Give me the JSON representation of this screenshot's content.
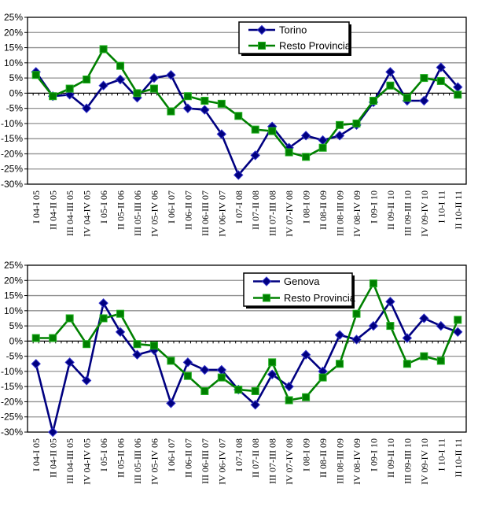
{
  "page": {
    "background": "#ffffff",
    "description": "Two line charts of quarterly year-over-year percentage change"
  },
  "colors": {
    "series1": "#000080",
    "series1_marker_edge": "#3333cc",
    "series2": "#008000",
    "series2_marker_edge": "#22b122",
    "gridline": "#909090",
    "axis": "#000000",
    "legend_bg": "#ffffff",
    "legend_border": "#000000",
    "legend_shadow": "#000000"
  },
  "chart_data": [
    {
      "type": "line",
      "title": "",
      "xlabel": "",
      "ylabel": "",
      "ylim": [
        -30,
        25
      ],
      "ytick_step": 5,
      "grid": true,
      "legend_position": "top-center",
      "y_tick_labels": [
        "25%",
        "20%",
        "15%",
        "10%",
        "5%",
        "0%",
        "-5%",
        "-10%",
        "-15%",
        "-20%",
        "-25%",
        "-30%"
      ],
      "categories": [
        "I 04-I 05",
        "II 04-II 05",
        "III 04-III 05",
        "IV 04-IV 05",
        "I 05-I 06",
        "II 05-II 06",
        "III 05-III 06",
        "IV 05-IV 06",
        "I 06-I 07",
        "II 06-II 07",
        "III 06-III 07",
        "IV 06-IV 07",
        "I 07-I 08",
        "II 07-II 08",
        "III 07-III 08",
        "IV 07-IV 08",
        "I 08-I 09",
        "II 08-II 09",
        "III 08-III 09",
        "IV 08-IV 09",
        "I 09-I 10",
        "II 09-II 10",
        "III 09-III 10",
        "IV 09-IV 10",
        "I 10-I 11",
        "II 10-II 11"
      ],
      "series": [
        {
          "name": "Torino",
          "marker": "diamond",
          "color": "#000080",
          "values": [
            7,
            -1,
            -0.5,
            -5,
            2.5,
            4.5,
            -1.5,
            5,
            6,
            -5,
            -5.5,
            -13.5,
            -27,
            -20.5,
            -11,
            -18,
            -14,
            -15.5,
            -14,
            -10.5,
            -3,
            7,
            -2.5,
            -2.5,
            8.5,
            2
          ]
        },
        {
          "name": "Resto Provincia",
          "marker": "square",
          "color": "#008000",
          "values": [
            6,
            -1,
            1.5,
            4.5,
            14.5,
            9,
            0,
            1.5,
            -6,
            -1,
            -2.5,
            -3.5,
            -7.5,
            -12,
            -12.5,
            -19.5,
            -21,
            -18,
            -10.5,
            -10,
            -2.5,
            2.5,
            -1.5,
            5,
            4,
            -0.5
          ]
        }
      ]
    },
    {
      "type": "line",
      "title": "",
      "xlabel": "",
      "ylabel": "",
      "ylim": [
        -30,
        25
      ],
      "ytick_step": 5,
      "grid": true,
      "legend_position": "top-center",
      "y_tick_labels": [
        "25%",
        "20%",
        "15%",
        "10%",
        "5%",
        "0%",
        "-5%",
        "-10%",
        "-15%",
        "-20%",
        "-25%",
        "-30%"
      ],
      "categories": [
        "I 04-I 05",
        "II 04-II 05",
        "III 04-III 05",
        "IV 04-IV 05",
        "I 05-I 06",
        "II 05-II 06",
        "III 05-III 06",
        "IV 05-IV 06",
        "I 06-I 07",
        "II 06-II 07",
        "III 06-III 07",
        "IV 06-IV 07",
        "I 07-I 08",
        "II 07-II 08",
        "III 07-III 08",
        "IV 07-IV 08",
        "I 08-I 09",
        "II 08-II 09",
        "III 08-III 09",
        "IV 08-IV 09",
        "I 09-I 10",
        "II 09-II 10",
        "III 09-III 10",
        "IV 09-IV 10",
        "I 10-I 11",
        "II 10-II 11"
      ],
      "series": [
        {
          "name": "Genova",
          "marker": "diamond",
          "color": "#000080",
          "values": [
            -7.5,
            -30,
            -7,
            -13,
            12.5,
            3,
            -4.5,
            -3,
            -20.5,
            -7,
            -9.5,
            -9.5,
            -16,
            -21,
            -11,
            -15,
            -4.5,
            -10,
            2,
            0.5,
            5,
            13,
            1,
            7.5,
            5,
            3
          ]
        },
        {
          "name": "Resto Provincia",
          "marker": "square",
          "color": "#008000",
          "values": [
            1,
            1,
            7.5,
            -1,
            7.5,
            9,
            -1,
            -1.5,
            -6.5,
            -11.5,
            -16.5,
            -12,
            -16,
            -16.5,
            -7,
            -19.5,
            -18.5,
            -12,
            -7.5,
            9,
            19,
            5,
            -7.5,
            -5,
            -6.5,
            7
          ]
        }
      ]
    }
  ]
}
